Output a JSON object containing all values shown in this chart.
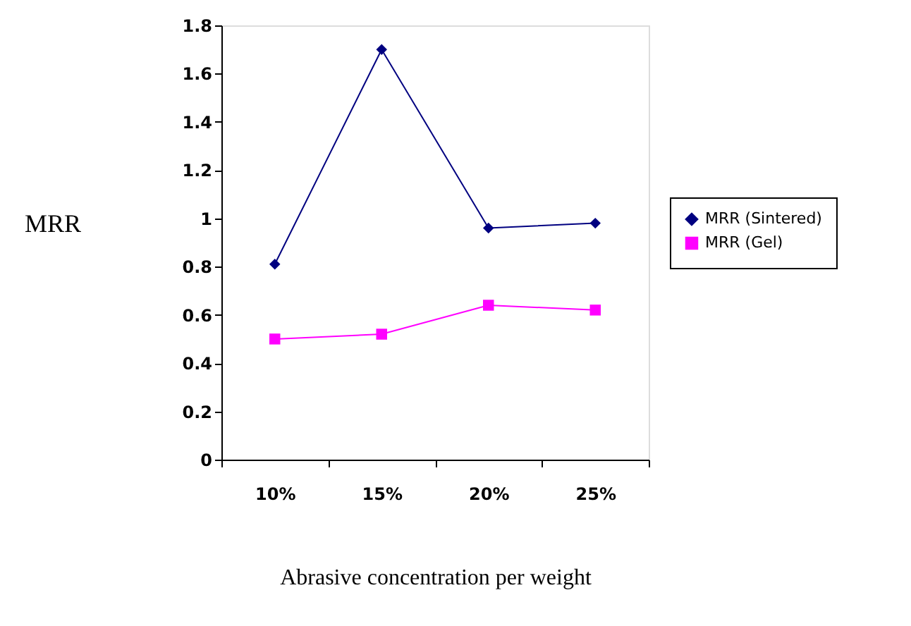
{
  "chart_data": {
    "type": "line",
    "xlabel": "Abrasive concentration per weight",
    "ylabel": "MRR",
    "categories": [
      "10%",
      "15%",
      "20%",
      "25%"
    ],
    "series": [
      {
        "name": "MRR (Sintered)",
        "color": "#000080",
        "marker": "diamond",
        "values": [
          0.81,
          1.7,
          0.96,
          0.98
        ]
      },
      {
        "name": "MRR (Gel)",
        "color": "#ff00ff",
        "marker": "square",
        "values": [
          0.5,
          0.52,
          0.64,
          0.62
        ]
      }
    ],
    "ylim": [
      0,
      1.8
    ],
    "yticks": [
      0,
      0.2,
      0.4,
      0.6,
      0.8,
      1,
      1.2,
      1.4,
      1.6,
      1.8
    ],
    "grid": false,
    "legend": "right",
    "line_style": "solid"
  }
}
